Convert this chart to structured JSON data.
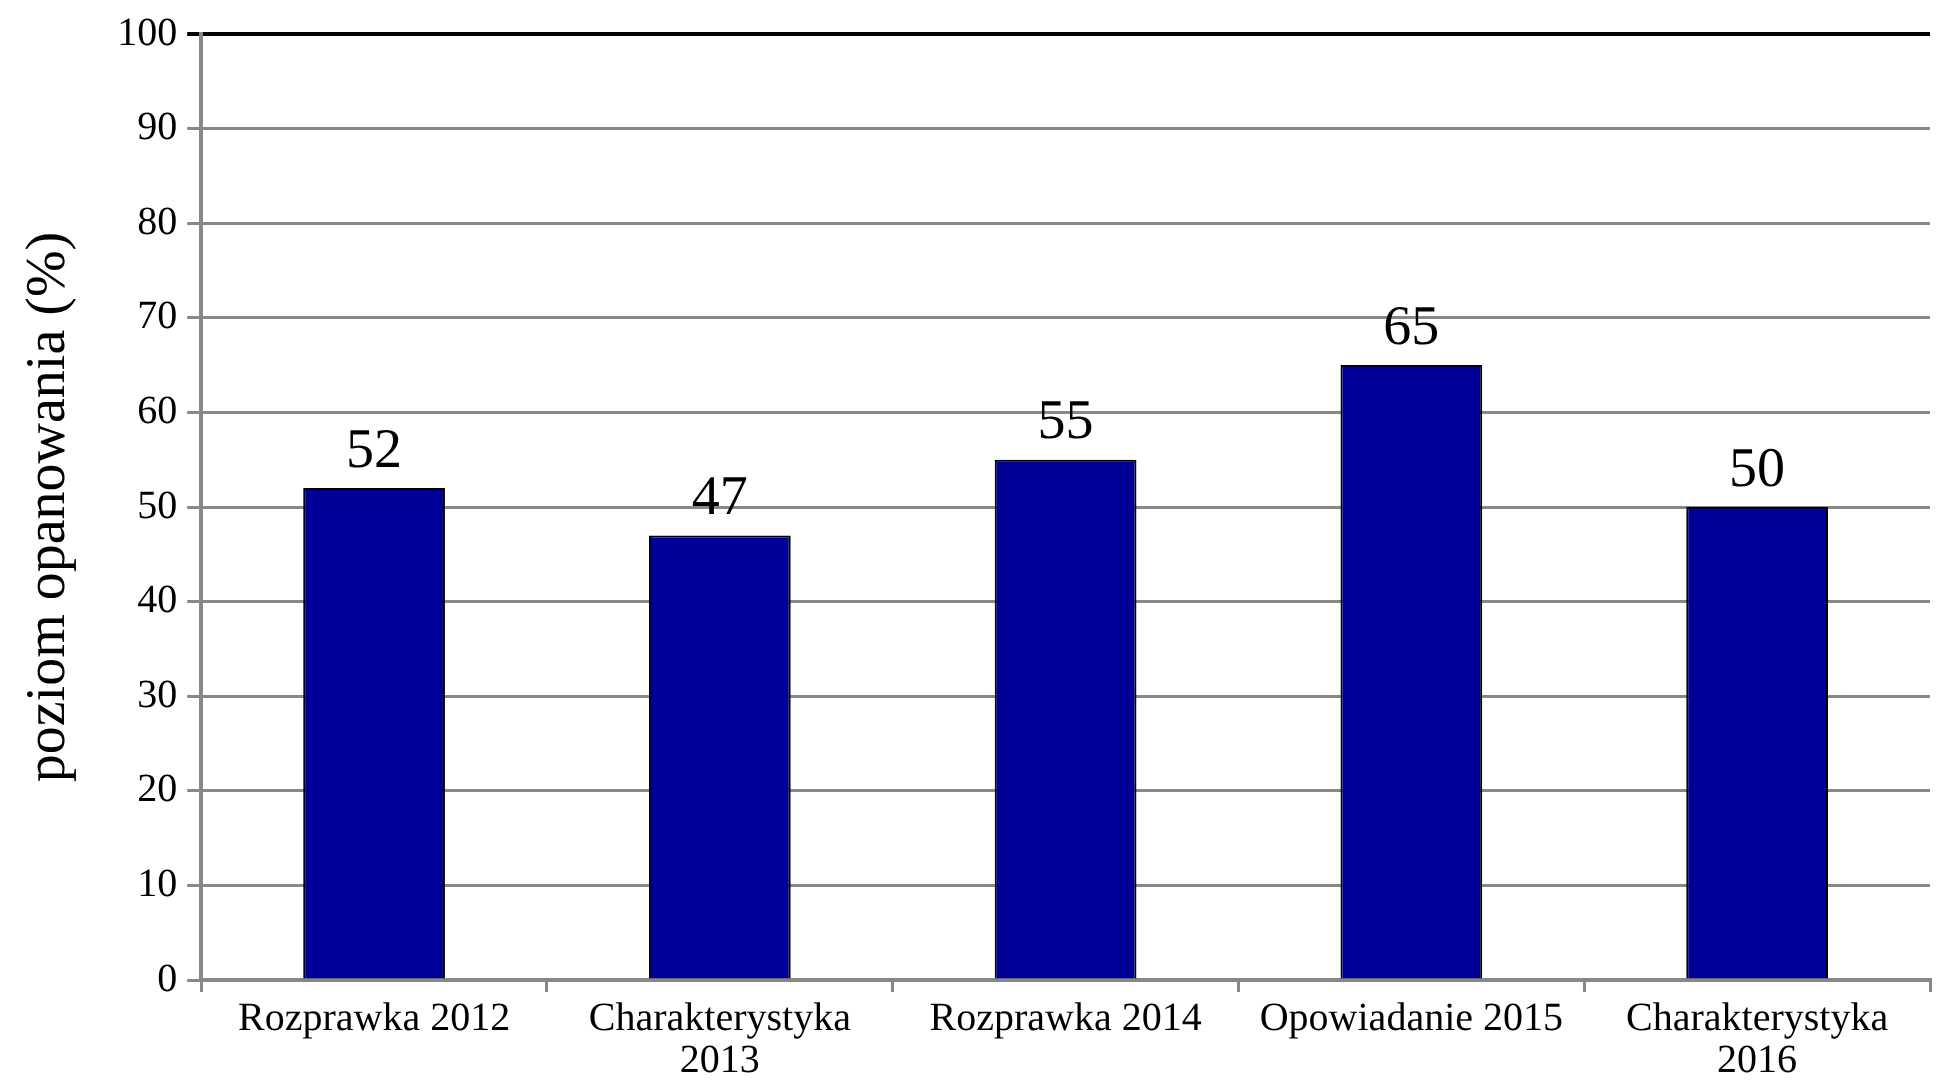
{
  "chart_data": {
    "type": "bar",
    "ylabel": "poziom opanowania (%)",
    "categories": [
      "Rozprawka 2012",
      "Charakterystyka 2013",
      "Rozprawka 2014",
      "Opowiadanie 2015",
      "Charakterystyka 2016"
    ],
    "values": [
      52,
      47,
      55,
      65,
      50
    ],
    "color": "#000099",
    "ylim": [
      0,
      100
    ],
    "yticks": [
      0,
      10,
      20,
      30,
      40,
      50,
      60,
      70,
      80,
      90,
      100
    ],
    "grid": "y",
    "data_labels": true
  }
}
